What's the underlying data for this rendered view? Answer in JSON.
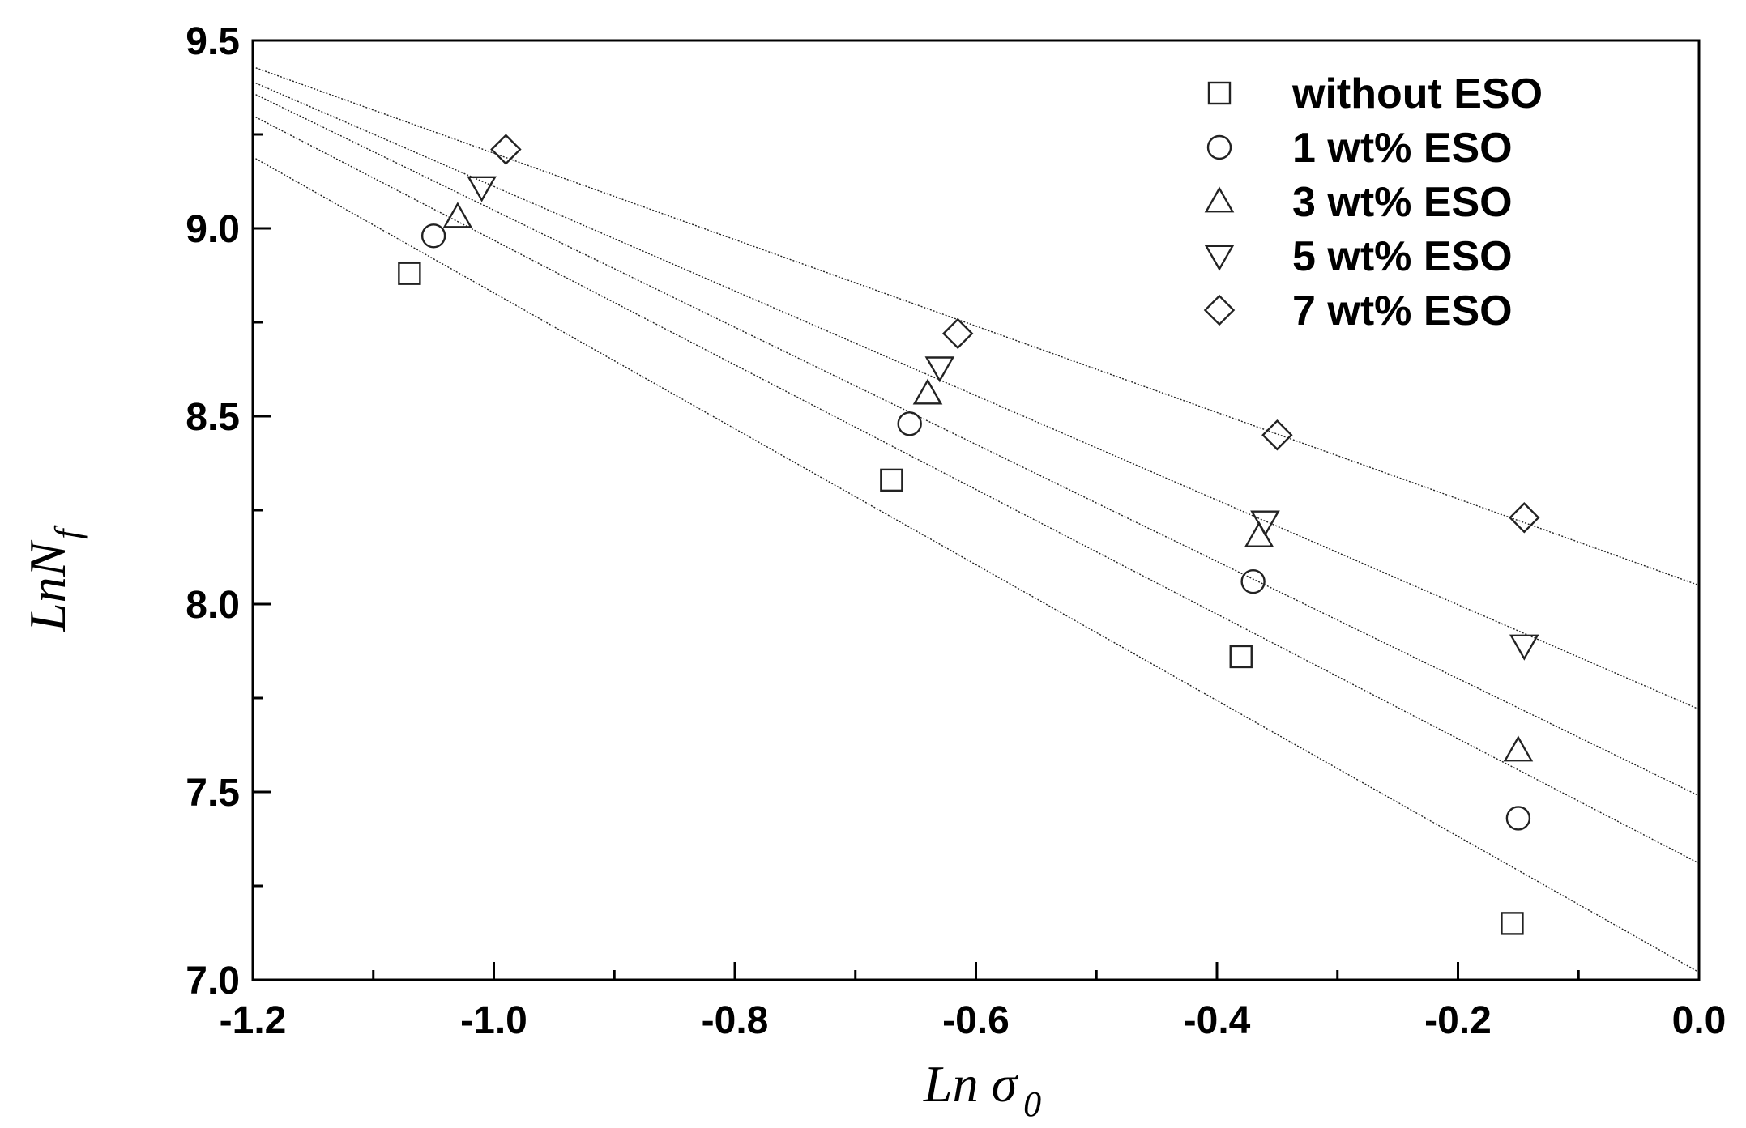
{
  "chart_data": {
    "type": "scatter",
    "title": "",
    "xlabel": "Ln σ",
    "xlabel_subscript": "0",
    "ylabel": "LnN",
    "ylabel_subscript": "f",
    "xlim": [
      -1.2,
      0.0
    ],
    "ylim": [
      7.0,
      9.5
    ],
    "x_major_ticks": [
      -1.2,
      -1.0,
      -0.8,
      -0.6,
      -0.4,
      -0.2,
      0.0
    ],
    "x_tick_labels": [
      "-1.2",
      "-1.0",
      "-0.8",
      "-0.6",
      "-0.4",
      "-0.2",
      "0.0"
    ],
    "y_major_ticks": [
      7.0,
      7.5,
      8.0,
      8.5,
      9.0,
      9.5
    ],
    "y_tick_labels": [
      "7.0",
      "7.5",
      "8.0",
      "8.5",
      "9.0",
      "9.5"
    ],
    "grid": false,
    "legend_position": "top-right",
    "series": [
      {
        "name": "without ESO",
        "marker": "square",
        "x": [
          -1.07,
          -0.67,
          -0.38,
          -0.155
        ],
        "y": [
          8.88,
          8.33,
          7.86,
          7.15
        ],
        "fit": {
          "x": [
            -1.2,
            0.0
          ],
          "y": [
            9.19,
            7.02
          ]
        }
      },
      {
        "name": "1 wt% ESO",
        "marker": "circle",
        "x": [
          -1.05,
          -0.655,
          -0.37,
          -0.15
        ],
        "y": [
          8.98,
          8.48,
          8.06,
          7.43
        ],
        "fit": {
          "x": [
            -1.2,
            0.0
          ],
          "y": [
            9.3,
            7.31
          ]
        }
      },
      {
        "name": "3 wt% ESO",
        "marker": "triangle-up",
        "x": [
          -1.03,
          -0.64,
          -0.365,
          -0.15
        ],
        "y": [
          9.03,
          8.56,
          8.18,
          7.61
        ],
        "fit": {
          "x": [
            -1.2,
            0.0
          ],
          "y": [
            9.36,
            7.49
          ]
        }
      },
      {
        "name": "5 wt% ESO",
        "marker": "triangle-down",
        "x": [
          -1.01,
          -0.63,
          -0.36,
          -0.145
        ],
        "y": [
          9.11,
          8.63,
          8.22,
          7.89
        ],
        "fit": {
          "x": [
            -1.2,
            0.0
          ],
          "y": [
            9.39,
            7.72
          ]
        }
      },
      {
        "name": "7 wt% ESO",
        "marker": "diamond",
        "x": [
          -0.99,
          -0.615,
          -0.35,
          -0.145
        ],
        "y": [
          9.21,
          8.72,
          8.45,
          8.23
        ],
        "fit": {
          "x": [
            -1.2,
            0.0
          ],
          "y": [
            9.43,
            8.05
          ]
        }
      }
    ]
  }
}
